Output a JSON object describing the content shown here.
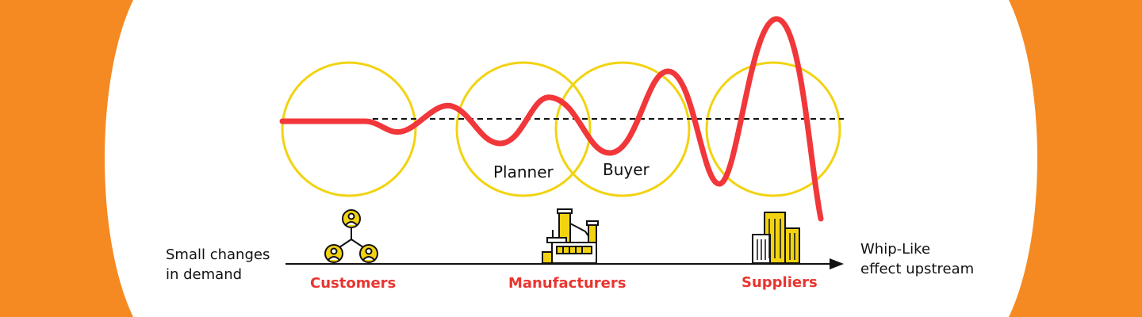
{
  "colors": {
    "background_side": "#F58A22",
    "background_center": "#FFFFFF",
    "circle": "#F2D311",
    "wave": "#F1373A",
    "label_red": "#E8352F",
    "text": "#111111",
    "icon_fill": "#F2D311"
  },
  "circle_labels": {
    "planner": "Planner",
    "buyer": "Buyer"
  },
  "axis": {
    "left_label_line1": "Small changes",
    "left_label_line2": "in demand",
    "right_label_line1": "Whip-Like",
    "right_label_line2": "effect upstream"
  },
  "stages": {
    "customers": {
      "label": "Customers",
      "icon": "people-network-icon"
    },
    "manufacturers": {
      "label": "Manufacturers",
      "icon": "factory-icon"
    },
    "suppliers": {
      "label": "Suppliers",
      "icon": "buildings-icon"
    }
  }
}
